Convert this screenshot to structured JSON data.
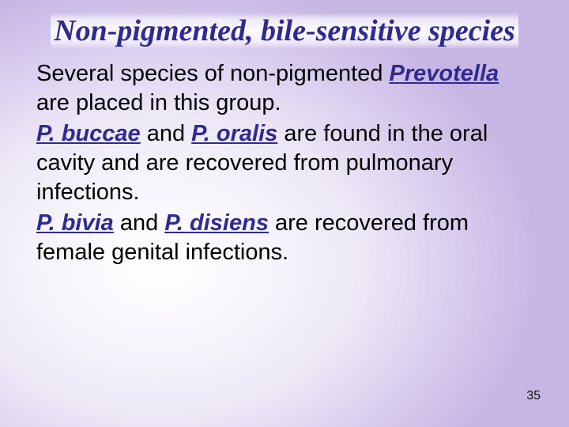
{
  "slide": {
    "title_html": "Non‑pigmented, bile‑sensitive species",
    "title_color": "#2f2a8f",
    "title_fontsize_pt": 38,
    "title_font_family": "Times New Roman",
    "title_style": "bold italic",
    "body_fontsize_pt": 29,
    "body_color": "#000000",
    "emphasis_color": "#2f2a8f",
    "emphasis_style": "bold italic underline",
    "background_gradient": {
      "type": "radial",
      "center": "28% 62%",
      "stops": [
        "#ffffff",
        "#f6f3fb",
        "#ece6f6",
        "#d9cdee",
        "#c7b6e4"
      ]
    },
    "paragraphs": [
      {
        "runs": [
          {
            "text": "Several species of non-pigmented ",
            "em": false
          },
          {
            "text": "Prevotella",
            "em": true
          },
          {
            "text": " are placed in this group.",
            "em": false
          }
        ]
      },
      {
        "runs": [
          {
            "text": " ",
            "em": false
          },
          {
            "text": "P. buccae",
            "em": true
          },
          {
            "text": " and ",
            "em": false
          },
          {
            "text": "P. oralis",
            "em": true
          },
          {
            "text": " are found in the oral cavity and are recovered from pulmonary infections.",
            "em": false
          }
        ]
      },
      {
        "runs": [
          {
            "text": "P. bivia",
            "em": true
          },
          {
            "text": " and  ",
            "em": false
          },
          {
            "text": "P. disiens",
            "em": true
          },
          {
            "text": " are recovered from female genital infections.",
            "em": false
          }
        ]
      }
    ],
    "page_number": "35"
  }
}
